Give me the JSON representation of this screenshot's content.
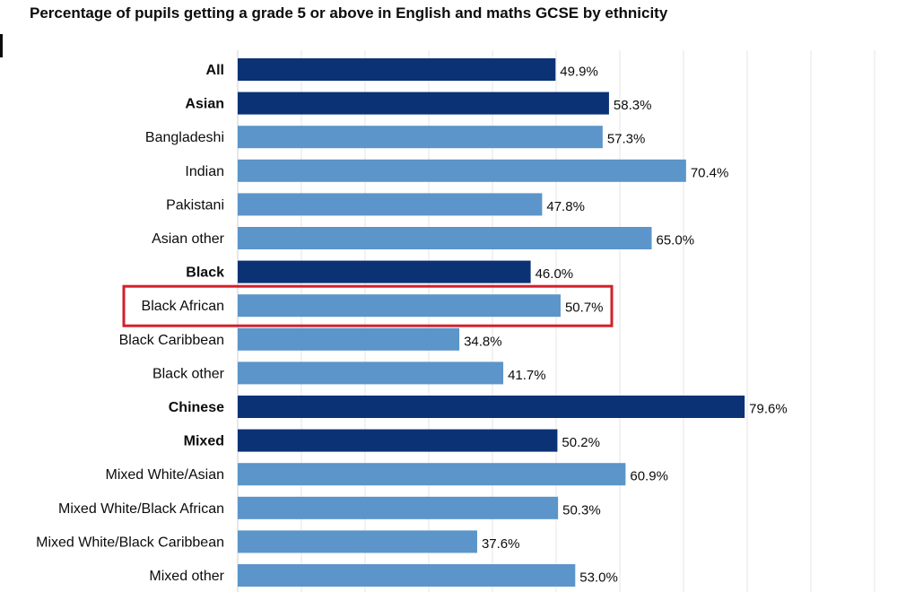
{
  "chart_data": {
    "type": "bar",
    "orientation": "horizontal",
    "title": "Percentage of pupils getting a grade 5 or above in English and maths GCSE by ethnicity",
    "xlabel": "",
    "ylabel": "",
    "xlim": [
      0,
      100
    ],
    "grid": "vertical gridlines",
    "value_suffix": "%",
    "categories": [
      "All",
      "Asian",
      "Bangladeshi",
      "Indian",
      "Pakistani",
      "Asian other",
      "Black",
      "Black African",
      "Black Caribbean",
      "Black other",
      "Chinese",
      "Mixed",
      "Mixed White/Asian",
      "Mixed White/Black African",
      "Mixed White/Black Caribbean",
      "Mixed other"
    ],
    "values": [
      49.9,
      58.3,
      57.3,
      70.4,
      47.8,
      65.0,
      46.0,
      50.7,
      34.8,
      41.7,
      79.6,
      50.2,
      60.9,
      50.3,
      37.6,
      53.0
    ],
    "value_labels": [
      "49.9%",
      "58.3%",
      "57.3%",
      "70.4%",
      "47.8%",
      "65.0%",
      "46.0%",
      "50.7%",
      "34.8%",
      "41.7%",
      "79.6%",
      "50.2%",
      "60.9%",
      "50.3%",
      "37.6%",
      "53.0%"
    ],
    "group_totals": [
      "All",
      "Asian",
      "Black",
      "Chinese",
      "Mixed"
    ],
    "highlighted": "Black African",
    "colors": {
      "group_total": "#0b3275",
      "subgroup": "#5b95c9",
      "highlight_box": "#d4202c",
      "gridline": "#e6e6e6"
    }
  }
}
